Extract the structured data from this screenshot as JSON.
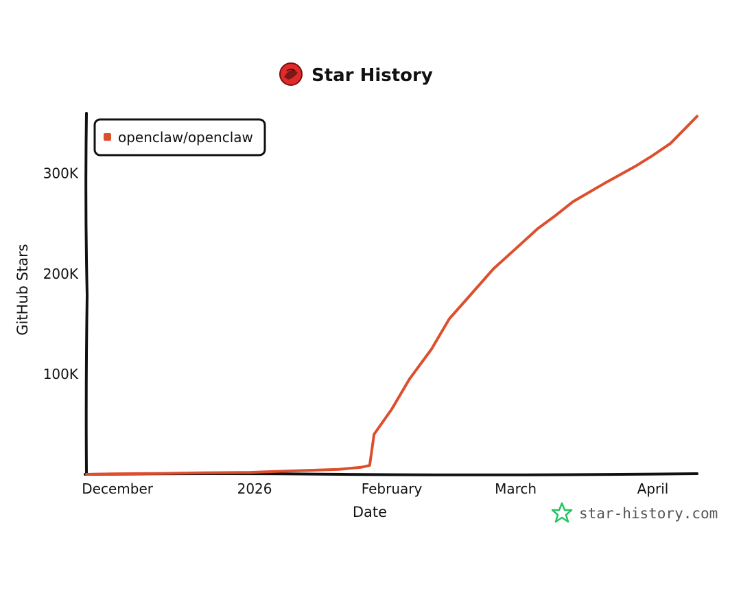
{
  "header": {
    "title": "Star History",
    "logo_icon": "lobster-logo-icon"
  },
  "watermark": {
    "text": "star-history.com",
    "icon": "star-outline-icon",
    "icon_color": "#22c55e"
  },
  "colors": {
    "series": "#dd4f2c",
    "axis": "#111111"
  },
  "chart_data": {
    "type": "line",
    "xlabel": "Date",
    "ylabel": "GitHub Stars",
    "x_tick_labels": [
      "December",
      "2026",
      "February",
      "March",
      "April"
    ],
    "x_ticks": [
      "2025-12-01",
      "2026-01-01",
      "2026-02-01",
      "2026-03-01",
      "2026-04-01"
    ],
    "xlim": [
      "2025-11-24",
      "2026-04-11"
    ],
    "ylim": [
      0,
      360000
    ],
    "y_ticks": [
      100000,
      200000,
      300000
    ],
    "y_tick_labels": [
      "100K",
      "200K",
      "300K"
    ],
    "grid": false,
    "legend": {
      "position": "top-left",
      "entries": [
        "openclaw/openclaw"
      ]
    },
    "series": [
      {
        "name": "openclaw/openclaw",
        "color": "#dd4f2c",
        "points": [
          [
            "2025-11-24",
            0
          ],
          [
            "2025-11-30",
            500
          ],
          [
            "2025-12-10",
            800
          ],
          [
            "2025-12-20",
            1500
          ],
          [
            "2025-12-31",
            2000
          ],
          [
            "2026-01-10",
            3500
          ],
          [
            "2026-01-20",
            5000
          ],
          [
            "2026-01-25",
            7000
          ],
          [
            "2026-01-27",
            9000
          ],
          [
            "2026-01-28",
            40000
          ],
          [
            "2026-02-01",
            65000
          ],
          [
            "2026-02-05",
            95000
          ],
          [
            "2026-02-10",
            125000
          ],
          [
            "2026-02-14",
            155000
          ],
          [
            "2026-02-19",
            180000
          ],
          [
            "2026-02-24",
            205000
          ],
          [
            "2026-03-01",
            225000
          ],
          [
            "2026-03-06",
            245000
          ],
          [
            "2026-03-10",
            258000
          ],
          [
            "2026-03-14",
            272000
          ],
          [
            "2026-03-21",
            290000
          ],
          [
            "2026-03-28",
            307000
          ],
          [
            "2026-04-01",
            318000
          ],
          [
            "2026-04-05",
            330000
          ],
          [
            "2026-04-11",
            357000
          ]
        ]
      }
    ]
  }
}
